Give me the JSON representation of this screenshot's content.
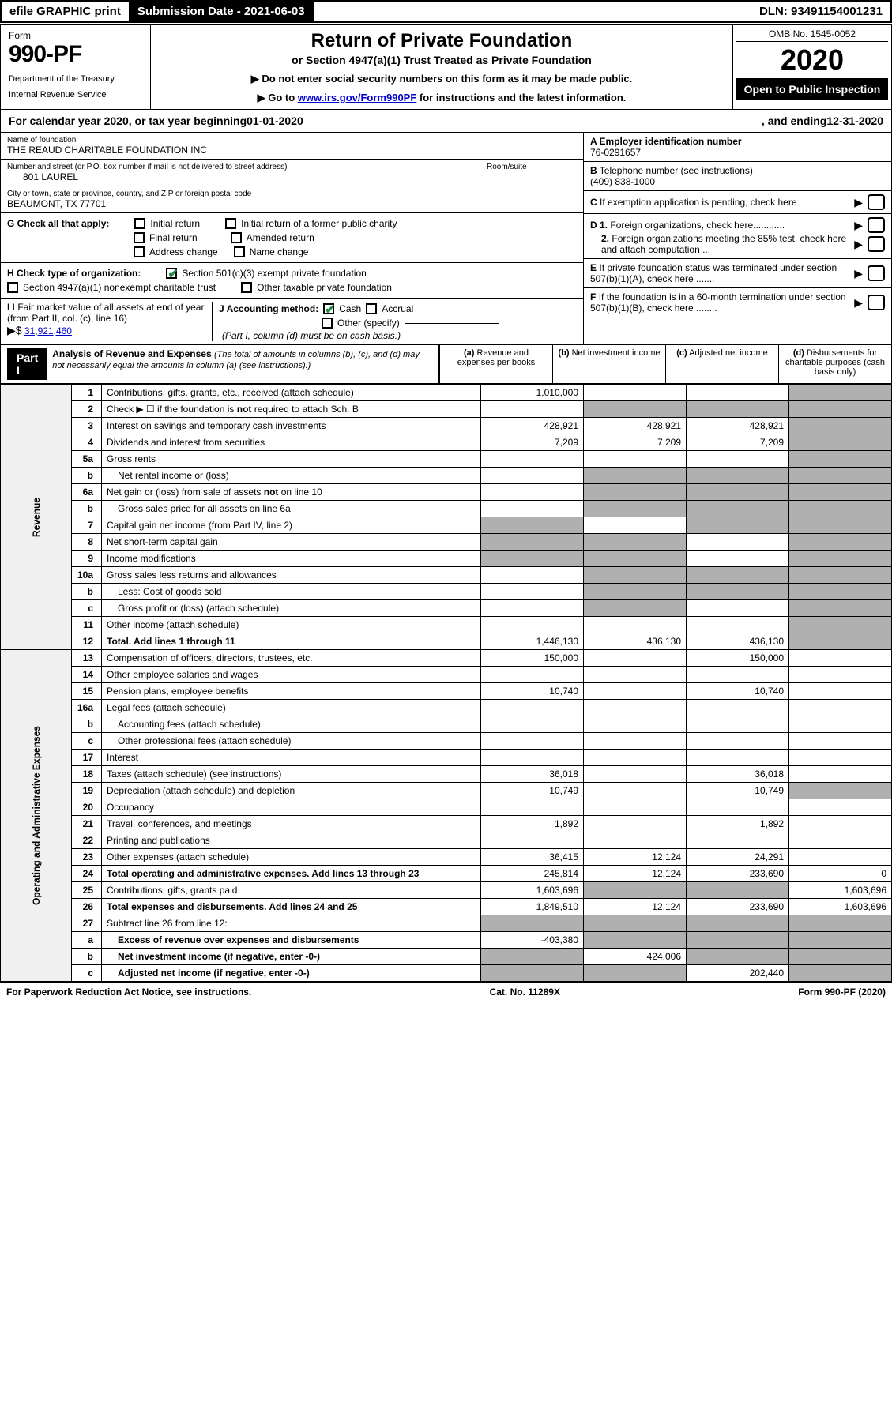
{
  "topbar": {
    "efile": "efile GRAPHIC print",
    "submission": "Submission Date - 2021-06-03",
    "dln": "DLN: 93491154001231"
  },
  "header": {
    "form_label": "Form",
    "form_num": "990-PF",
    "dept1": "Department of the Treasury",
    "dept2": "Internal Revenue Service",
    "title": "Return of Private Foundation",
    "subtitle": "or Section 4947(a)(1) Trust Treated as Private Foundation",
    "instr1": "▶ Do not enter social security numbers on this form as it may be made public.",
    "instr2_pre": "▶ Go to ",
    "instr2_link": "www.irs.gov/Form990PF",
    "instr2_post": " for instructions and the latest information.",
    "omb": "OMB No. 1545-0052",
    "year": "2020",
    "open": "Open to Public Inspection"
  },
  "cal": {
    "pre": "For calendar year 2020, or tax year beginning ",
    "begin": "01-01-2020",
    "mid": ", and ending ",
    "end": "12-31-2020"
  },
  "info": {
    "name_label": "Name of foundation",
    "name": "THE REAUD CHARITABLE FOUNDATION INC",
    "addr_label": "Number and street (or P.O. box number if mail is not delivered to street address)",
    "addr": "801 LAUREL",
    "room_label": "Room/suite",
    "room": "",
    "city_label": "City or town, state or province, country, and ZIP or foreign postal code",
    "city": "BEAUMONT, TX  77701",
    "a_label": "A Employer identification number",
    "ein": "76-0291657",
    "b_label": "B",
    "b_text": "Telephone number (see instructions)",
    "phone": "(409) 838-1000",
    "c_text": "If exemption application is pending, check here",
    "d1_text": "Foreign organizations, check here............",
    "d2_text": "Foreign organizations meeting the 85% test, check here and attach computation ...",
    "e_text": "If private foundation status was terminated under section 507(b)(1)(A), check here .......",
    "f_text": "If the foundation is in a 60-month termination under section 507(b)(1)(B), check here ........"
  },
  "g": {
    "label": "G Check all that apply:",
    "initial": "Initial return",
    "initial_former": "Initial return of a former public charity",
    "final": "Final return",
    "amended": "Amended return",
    "addr_change": "Address change",
    "name_change": "Name change"
  },
  "h": {
    "label": "H Check type of organization:",
    "opt1": "Section 501(c)(3) exempt private foundation",
    "opt2": "Section 4947(a)(1) nonexempt charitable trust",
    "opt3": "Other taxable private foundation"
  },
  "i": {
    "label": "I Fair market value of all assets at end of year (from Part II, col. (c), line 16)",
    "arrow": "▶$",
    "value": "31,921,460"
  },
  "j": {
    "label": "J Accounting method:",
    "cash": "Cash",
    "accrual": "Accrual",
    "other": "Other (specify)",
    "note": "(Part I, column (d) must be on cash basis.)"
  },
  "part1": {
    "label": "Part I",
    "title": "Analysis of Revenue and Expenses",
    "note": "(The total of amounts in columns (b), (c), and (d) may not necessarily equal the amounts in column (a) (see instructions).)",
    "col_a": "Revenue and expenses per books",
    "col_b": "Net investment income",
    "col_c": "Adjusted net income",
    "col_d": "Disbursements for charitable purposes (cash basis only)"
  },
  "vert_labels": {
    "revenue": "Revenue",
    "expenses": "Operating and Administrative Expenses"
  },
  "lines": [
    {
      "n": "1",
      "desc": "Contributions, gifts, grants, etc., received (attach schedule)",
      "a": "1,010,000",
      "b": "",
      "c": "",
      "d": ""
    },
    {
      "n": "2",
      "desc": "Check ▶ ☐ if the foundation is not required to attach Sch. B",
      "a": "",
      "b": "",
      "c": "",
      "d": "",
      "shaded_bcd": true
    },
    {
      "n": "3",
      "desc": "Interest on savings and temporary cash investments",
      "a": "428,921",
      "b": "428,921",
      "c": "428,921",
      "d": ""
    },
    {
      "n": "4",
      "desc": "Dividends and interest from securities",
      "a": "7,209",
      "b": "7,209",
      "c": "7,209",
      "d": ""
    },
    {
      "n": "5a",
      "desc": "Gross rents",
      "a": "",
      "b": "",
      "c": "",
      "d": ""
    },
    {
      "n": "b",
      "desc": "Net rental income or (loss)",
      "a": "",
      "b": "",
      "c": "",
      "d": "",
      "shaded_bcd": true,
      "indent": true
    },
    {
      "n": "6a",
      "desc": "Net gain or (loss) from sale of assets not on line 10",
      "a": "",
      "b": "",
      "c": "",
      "d": "",
      "shaded_bcd": true
    },
    {
      "n": "b",
      "desc": "Gross sales price for all assets on line 6a",
      "a": "",
      "b": "",
      "c": "",
      "d": "",
      "shaded_bcd": true,
      "indent": true
    },
    {
      "n": "7",
      "desc": "Capital gain net income (from Part IV, line 2)",
      "a": "",
      "b": "",
      "c": "",
      "d": "",
      "shaded_acd": true
    },
    {
      "n": "8",
      "desc": "Net short-term capital gain",
      "a": "",
      "b": "",
      "c": "",
      "d": "",
      "shaded_abd": true
    },
    {
      "n": "9",
      "desc": "Income modifications",
      "a": "",
      "b": "",
      "c": "",
      "d": "",
      "shaded_abd": true
    },
    {
      "n": "10a",
      "desc": "Gross sales less returns and allowances",
      "a": "",
      "b": "",
      "c": "",
      "d": "",
      "shaded_bcd": true
    },
    {
      "n": "b",
      "desc": "Less: Cost of goods sold",
      "a": "",
      "b": "",
      "c": "",
      "d": "",
      "shaded_bcd": true,
      "indent": true
    },
    {
      "n": "c",
      "desc": "Gross profit or (loss) (attach schedule)",
      "a": "",
      "b": "",
      "c": "",
      "d": "",
      "shaded_bd": true,
      "indent": true
    },
    {
      "n": "11",
      "desc": "Other income (attach schedule)",
      "a": "",
      "b": "",
      "c": "",
      "d": ""
    },
    {
      "n": "12",
      "desc": "Total. Add lines 1 through 11",
      "a": "1,446,130",
      "b": "436,130",
      "c": "436,130",
      "d": "",
      "bold": true
    },
    {
      "n": "13",
      "desc": "Compensation of officers, directors, trustees, etc.",
      "a": "150,000",
      "b": "",
      "c": "150,000",
      "d": ""
    },
    {
      "n": "14",
      "desc": "Other employee salaries and wages",
      "a": "",
      "b": "",
      "c": "",
      "d": ""
    },
    {
      "n": "15",
      "desc": "Pension plans, employee benefits",
      "a": "10,740",
      "b": "",
      "c": "10,740",
      "d": ""
    },
    {
      "n": "16a",
      "desc": "Legal fees (attach schedule)",
      "a": "",
      "b": "",
      "c": "",
      "d": ""
    },
    {
      "n": "b",
      "desc": "Accounting fees (attach schedule)",
      "a": "",
      "b": "",
      "c": "",
      "d": "",
      "indent": true
    },
    {
      "n": "c",
      "desc": "Other professional fees (attach schedule)",
      "a": "",
      "b": "",
      "c": "",
      "d": "",
      "indent": true
    },
    {
      "n": "17",
      "desc": "Interest",
      "a": "",
      "b": "",
      "c": "",
      "d": ""
    },
    {
      "n": "18",
      "desc": "Taxes (attach schedule) (see instructions)",
      "a": "36,018",
      "b": "",
      "c": "36,018",
      "d": ""
    },
    {
      "n": "19",
      "desc": "Depreciation (attach schedule) and depletion",
      "a": "10,749",
      "b": "",
      "c": "10,749",
      "d": "",
      "shaded_d": true
    },
    {
      "n": "20",
      "desc": "Occupancy",
      "a": "",
      "b": "",
      "c": "",
      "d": ""
    },
    {
      "n": "21",
      "desc": "Travel, conferences, and meetings",
      "a": "1,892",
      "b": "",
      "c": "1,892",
      "d": ""
    },
    {
      "n": "22",
      "desc": "Printing and publications",
      "a": "",
      "b": "",
      "c": "",
      "d": ""
    },
    {
      "n": "23",
      "desc": "Other expenses (attach schedule)",
      "a": "36,415",
      "b": "12,124",
      "c": "24,291",
      "d": ""
    },
    {
      "n": "24",
      "desc": "Total operating and administrative expenses. Add lines 13 through 23",
      "a": "245,814",
      "b": "12,124",
      "c": "233,690",
      "d": "0",
      "bold": true
    },
    {
      "n": "25",
      "desc": "Contributions, gifts, grants paid",
      "a": "1,603,696",
      "b": "",
      "c": "",
      "d": "1,603,696",
      "shaded_bc": true
    },
    {
      "n": "26",
      "desc": "Total expenses and disbursements. Add lines 24 and 25",
      "a": "1,849,510",
      "b": "12,124",
      "c": "233,690",
      "d": "1,603,696",
      "bold": true
    },
    {
      "n": "27",
      "desc": "Subtract line 26 from line 12:",
      "a": "",
      "b": "",
      "c": "",
      "d": "",
      "shaded_all": true
    },
    {
      "n": "a",
      "desc": "Excess of revenue over expenses and disbursements",
      "a": "-403,380",
      "b": "",
      "c": "",
      "d": "",
      "indent": true,
      "bold": true,
      "shaded_bcd": true
    },
    {
      "n": "b",
      "desc": "Net investment income (if negative, enter -0-)",
      "a": "",
      "b": "424,006",
      "c": "",
      "d": "",
      "indent": true,
      "bold": true,
      "shaded_acd": true
    },
    {
      "n": "c",
      "desc": "Adjusted net income (if negative, enter -0-)",
      "a": "",
      "b": "",
      "c": "202,440",
      "d": "",
      "indent": true,
      "bold": true,
      "shaded_abd": true
    }
  ],
  "footer": {
    "left": "For Paperwork Reduction Act Notice, see instructions.",
    "mid": "Cat. No. 11289X",
    "right": "Form 990-PF (2020)"
  }
}
